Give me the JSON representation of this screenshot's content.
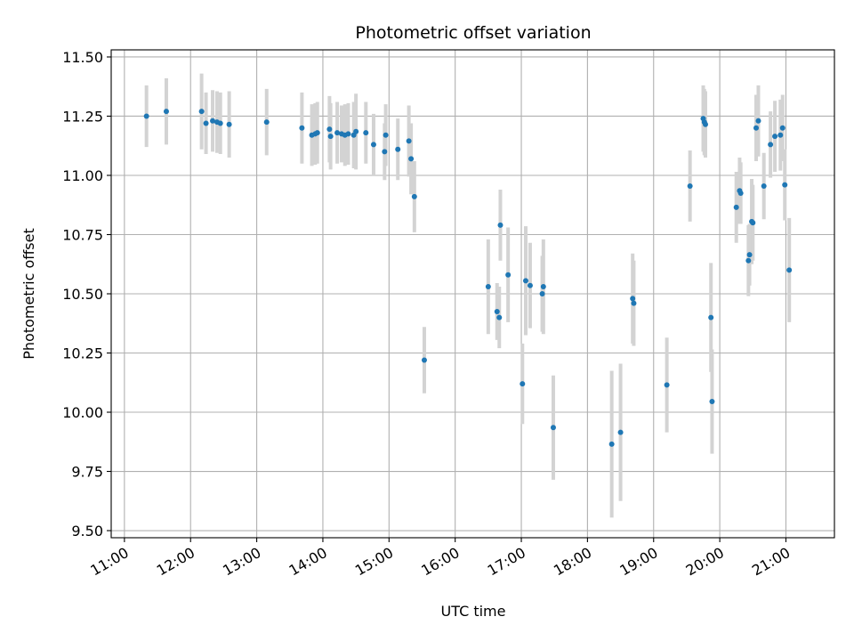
{
  "chart_data": {
    "type": "scatter",
    "title": "Photometric offset variation",
    "xlabel": "UTC time",
    "ylabel": "Photometric offset",
    "xlim": [
      "10:48",
      "21:44"
    ],
    "ylim": [
      9.47,
      11.53
    ],
    "x_ticks": [
      "11:00",
      "12:00",
      "13:00",
      "14:00",
      "15:00",
      "16:00",
      "17:00",
      "18:00",
      "19:00",
      "20:00",
      "21:00"
    ],
    "y_ticks": [
      9.5,
      9.75,
      10.0,
      10.25,
      10.5,
      10.75,
      11.0,
      11.25,
      11.5
    ],
    "grid": true,
    "legend": "none",
    "colors": {
      "point": "#1f77b4",
      "errorbar": "#d3d3d3",
      "grid": "#b0b0b0"
    },
    "series": [
      {
        "x": [
          "11:20",
          "11:38",
          "12:10",
          "12:14",
          "12:20",
          "12:24",
          "12:27",
          "12:35",
          "13:09",
          "13:41",
          "13:50",
          "13:53",
          "13:55",
          "14:06",
          "14:07",
          "14:13",
          "14:17",
          "14:20",
          "14:23",
          "14:28",
          "14:30",
          "14:39",
          "14:46",
          "14:56",
          "14:57",
          "15:08",
          "15:18",
          "15:20",
          "15:23",
          "15:32",
          "16:30",
          "16:38",
          "16:40",
          "16:41",
          "16:48",
          "17:01",
          "17:04",
          "17:08",
          "17:19",
          "17:20",
          "17:29",
          "18:22",
          "18:30",
          "18:41",
          "18:42",
          "19:12",
          "19:33",
          "19:45",
          "19:46",
          "19:47",
          "19:52",
          "19:53",
          "20:15",
          "20:18",
          "20:19",
          "20:26",
          "20:27",
          "20:29",
          "20:30",
          "20:33",
          "20:35",
          "20:40",
          "20:46",
          "20:50",
          "20:55",
          "20:57",
          "20:59",
          "21:03"
        ],
        "y": [
          11.25,
          11.27,
          11.27,
          11.22,
          11.23,
          11.225,
          11.22,
          11.215,
          11.225,
          11.2,
          11.17,
          11.175,
          11.18,
          11.195,
          11.165,
          11.18,
          11.175,
          11.17,
          11.175,
          11.17,
          11.185,
          11.18,
          11.13,
          11.1,
          11.17,
          11.11,
          11.145,
          11.07,
          10.91,
          10.22,
          10.53,
          10.425,
          10.4,
          10.79,
          10.58,
          10.12,
          10.555,
          10.535,
          10.5,
          10.53,
          9.935,
          9.865,
          9.915,
          10.48,
          10.46,
          10.115,
          10.955,
          11.24,
          11.225,
          11.215,
          10.4,
          10.045,
          10.865,
          10.935,
          10.925,
          10.64,
          10.665,
          10.805,
          10.8,
          11.2,
          11.23,
          10.955,
          11.13,
          11.165,
          11.17,
          11.2,
          10.96,
          10.6
        ],
        "err": [
          0.13,
          0.14,
          0.16,
          0.13,
          0.13,
          0.13,
          0.13,
          0.14,
          0.14,
          0.15,
          0.13,
          0.13,
          0.13,
          0.14,
          0.14,
          0.13,
          0.12,
          0.13,
          0.13,
          0.14,
          0.16,
          0.13,
          0.13,
          0.12,
          0.13,
          0.13,
          0.15,
          0.15,
          0.15,
          0.14,
          0.2,
          0.12,
          0.13,
          0.15,
          0.2,
          0.17,
          0.23,
          0.18,
          0.16,
          0.2,
          0.22,
          0.31,
          0.29,
          0.19,
          0.18,
          0.2,
          0.15,
          0.14,
          0.14,
          0.14,
          0.23,
          0.22,
          0.15,
          0.14,
          0.13,
          0.15,
          0.13,
          0.18,
          0.16,
          0.14,
          0.15,
          0.14,
          0.14,
          0.15,
          0.15,
          0.14,
          0.15,
          0.22
        ]
      }
    ]
  }
}
